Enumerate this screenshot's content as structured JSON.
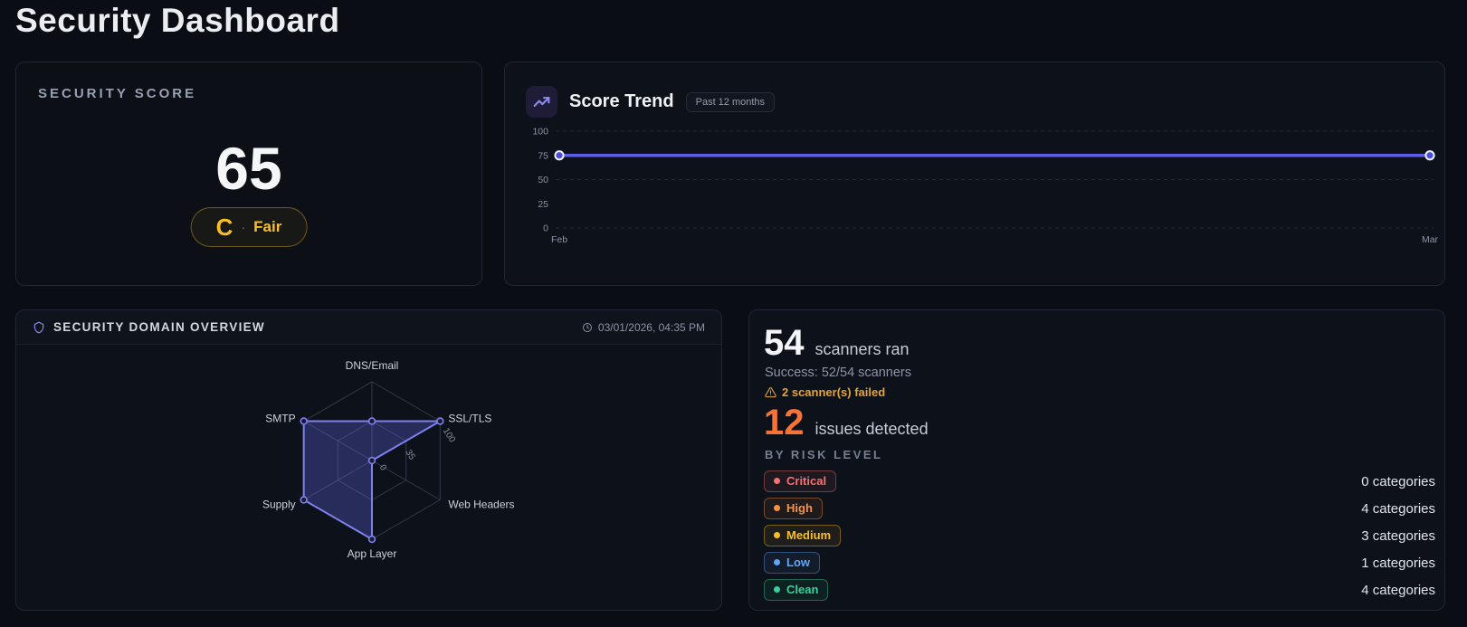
{
  "page": {
    "title": "Security Dashboard"
  },
  "score_card": {
    "label": "SECURITY SCORE",
    "score": "65",
    "grade": "C",
    "separator": "·",
    "grade_text": "Fair",
    "accent_color": "#fbbf24"
  },
  "trend_card": {
    "title": "Score Trend",
    "badge": "Past 12 months",
    "icon": "trending-up-icon"
  },
  "domain_card": {
    "title": "SECURITY DOMAIN OVERVIEW",
    "timestamp": "03/01/2026, 04:35 PM",
    "icon": "shield-icon",
    "time_icon": "clock-icon"
  },
  "stats_card": {
    "scanners_count": "54",
    "scanners_label": "scanners ran",
    "success_text": "Success: 52/54 scanners",
    "failed_text": "2 scanner(s) failed",
    "issues_count": "12",
    "issues_label": "issues detected",
    "risk_header": "BY RISK LEVEL",
    "risk_levels": [
      {
        "label": "Critical",
        "count": "0 categories",
        "color": "#f87171"
      },
      {
        "label": "High",
        "count": "4 categories",
        "color": "#fb923c"
      },
      {
        "label": "Medium",
        "count": "3 categories",
        "color": "#fbbf24"
      },
      {
        "label": "Low",
        "count": "1 categories",
        "color": "#60a5fa"
      },
      {
        "label": "Clean",
        "count": "4 categories",
        "color": "#34d399"
      }
    ]
  },
  "chart_data": [
    {
      "type": "line",
      "title": "Score Trend",
      "x": [
        "Feb",
        "Mar"
      ],
      "series": [
        {
          "name": "Security score",
          "values": [
            75,
            75
          ]
        }
      ],
      "ylim": [
        0,
        100
      ],
      "yticks": [
        0,
        25,
        50,
        75,
        100
      ],
      "gridlines": [
        0,
        50,
        100
      ],
      "grid_style": "dashed-horizontal",
      "legend": "none",
      "line_color": "#5d5fe8",
      "point_fill": "#4a4bd6",
      "point_ring": "#eceef8",
      "tick_color": "#8b93a3"
    },
    {
      "type": "radar",
      "title": "Security Domain Overview",
      "categories": [
        "DNS/Email",
        "SSL/TLS",
        "Web Headers",
        "App Layer",
        "Supply",
        "SMTP"
      ],
      "values": [
        50,
        100,
        0,
        100,
        100,
        100
      ],
      "rlim": [
        0,
        100
      ],
      "rtick_labels": [
        "0",
        "35",
        "100"
      ],
      "rtick_positions": [
        0.07,
        0.45,
        1.0
      ],
      "rings": [
        0.5,
        1.0
      ],
      "grid_color": "#3a4150",
      "stroke_color": "#7e80ee",
      "fill_color": "rgba(97,100,228,0.33)",
      "label_color": "#ccd1da",
      "tick_color": "#868e9e"
    }
  ]
}
